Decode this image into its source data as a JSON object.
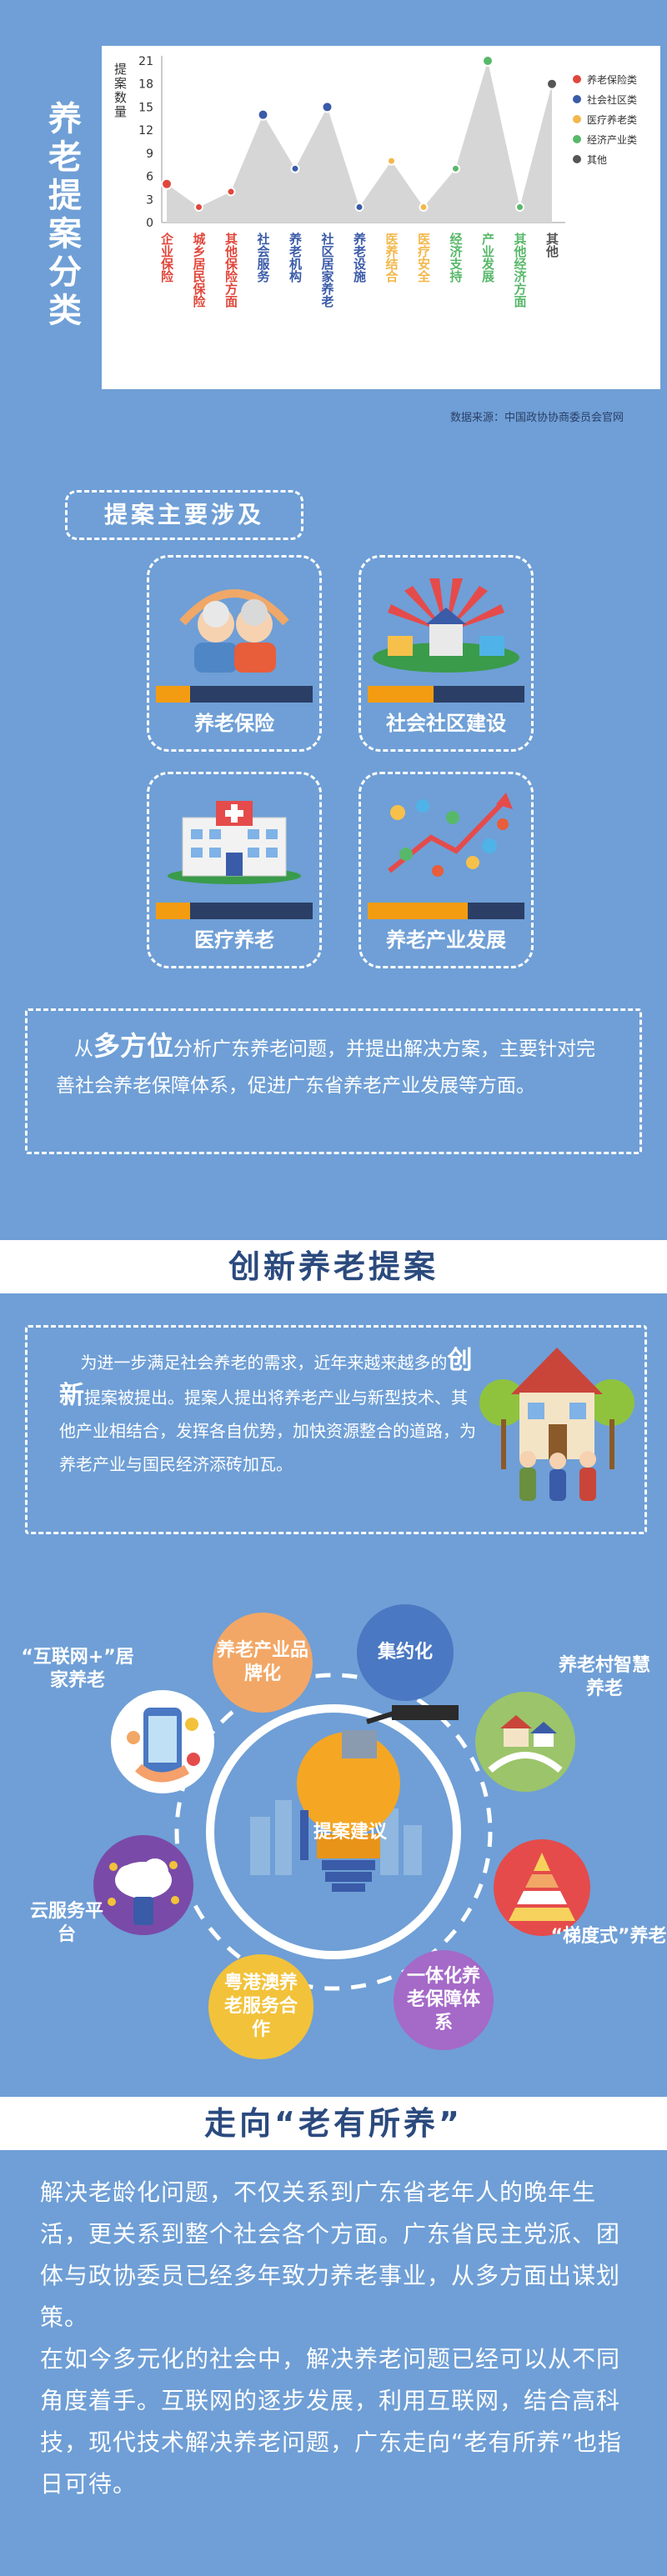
{
  "section1": {
    "side_title": "养老提案分类",
    "source": "数据来源：中国政协协商委员会官网"
  },
  "chart_data": {
    "type": "line",
    "ylabel": "提案数量",
    "ylim": [
      0,
      21
    ],
    "yticks": [
      0,
      3,
      6,
      9,
      12,
      15,
      18,
      21
    ],
    "categories": [
      "企业保险",
      "城乡居民保险",
      "其他保险方面",
      "社会服务",
      "养老机构",
      "社区居家养老",
      "养老设施",
      "医养结合",
      "医疗安全",
      "经济支持",
      "产业发展",
      "其他经济方面",
      "其他"
    ],
    "values": [
      5,
      2,
      4,
      14,
      7,
      15,
      2,
      8,
      2,
      7,
      21,
      2,
      18
    ],
    "point_groups": [
      0,
      0,
      0,
      1,
      1,
      1,
      1,
      2,
      2,
      3,
      3,
      3,
      4
    ],
    "legend": [
      "养老保险类",
      "社会社区类",
      "医疗养老类",
      "经济产业类",
      "其他"
    ],
    "group_colors": [
      "#e0473c",
      "#3a5ba8",
      "#f2b84b",
      "#58b86a",
      "#555555"
    ],
    "grid": false
  },
  "section2": {
    "pill": "提案主要涉及",
    "cards": [
      "养老保险",
      "社会社区建设",
      "医疗养老",
      "养老产业发展"
    ],
    "para_prefix": "从",
    "para_bold": "多方位",
    "para_rest": "分析广东养老问题，并提出解决方案，主要针对完善社会养老保障体系，促进广东省养老产业发展等方面。"
  },
  "section3": {
    "title": "创新养老提案",
    "para_a": "为进一步满足社会养老的需求，近年来越来越多的",
    "para_bold": "创新",
    "para_b": "提案被提出。提案人提出将养老产业与新型技术、其他产业相结合，发挥各自优势，加快资源整合的道路，为养老产业与国民经济添砖加瓦。",
    "hub": "提案建议",
    "bubbles": [
      "养老产业品牌化",
      "集约化",
      "一体化养老保障体系",
      "粤港澳养老服务合作"
    ],
    "labels": [
      "“互联网+”居家养老",
      "养老村智慧养老",
      "云服务平台",
      "“梯度式”养老"
    ]
  },
  "section4": {
    "title": "走向“老有所养”",
    "paragraphs": [
      "解决老龄化问题，不仅关系到广东省老年人的晚年生活，更关系到整个社会各个方面。广东省民主党派、团体与政协委员已经多年致力养老事业，从多方面出谋划策。",
      "在如今多元化的社会中，解决养老问题已经可以从不同角度着手。互联网的逐步发展，利用互联网，结合高科技，现代技术解决养老问题，广东走向“老有所养”也指日可待。"
    ]
  }
}
